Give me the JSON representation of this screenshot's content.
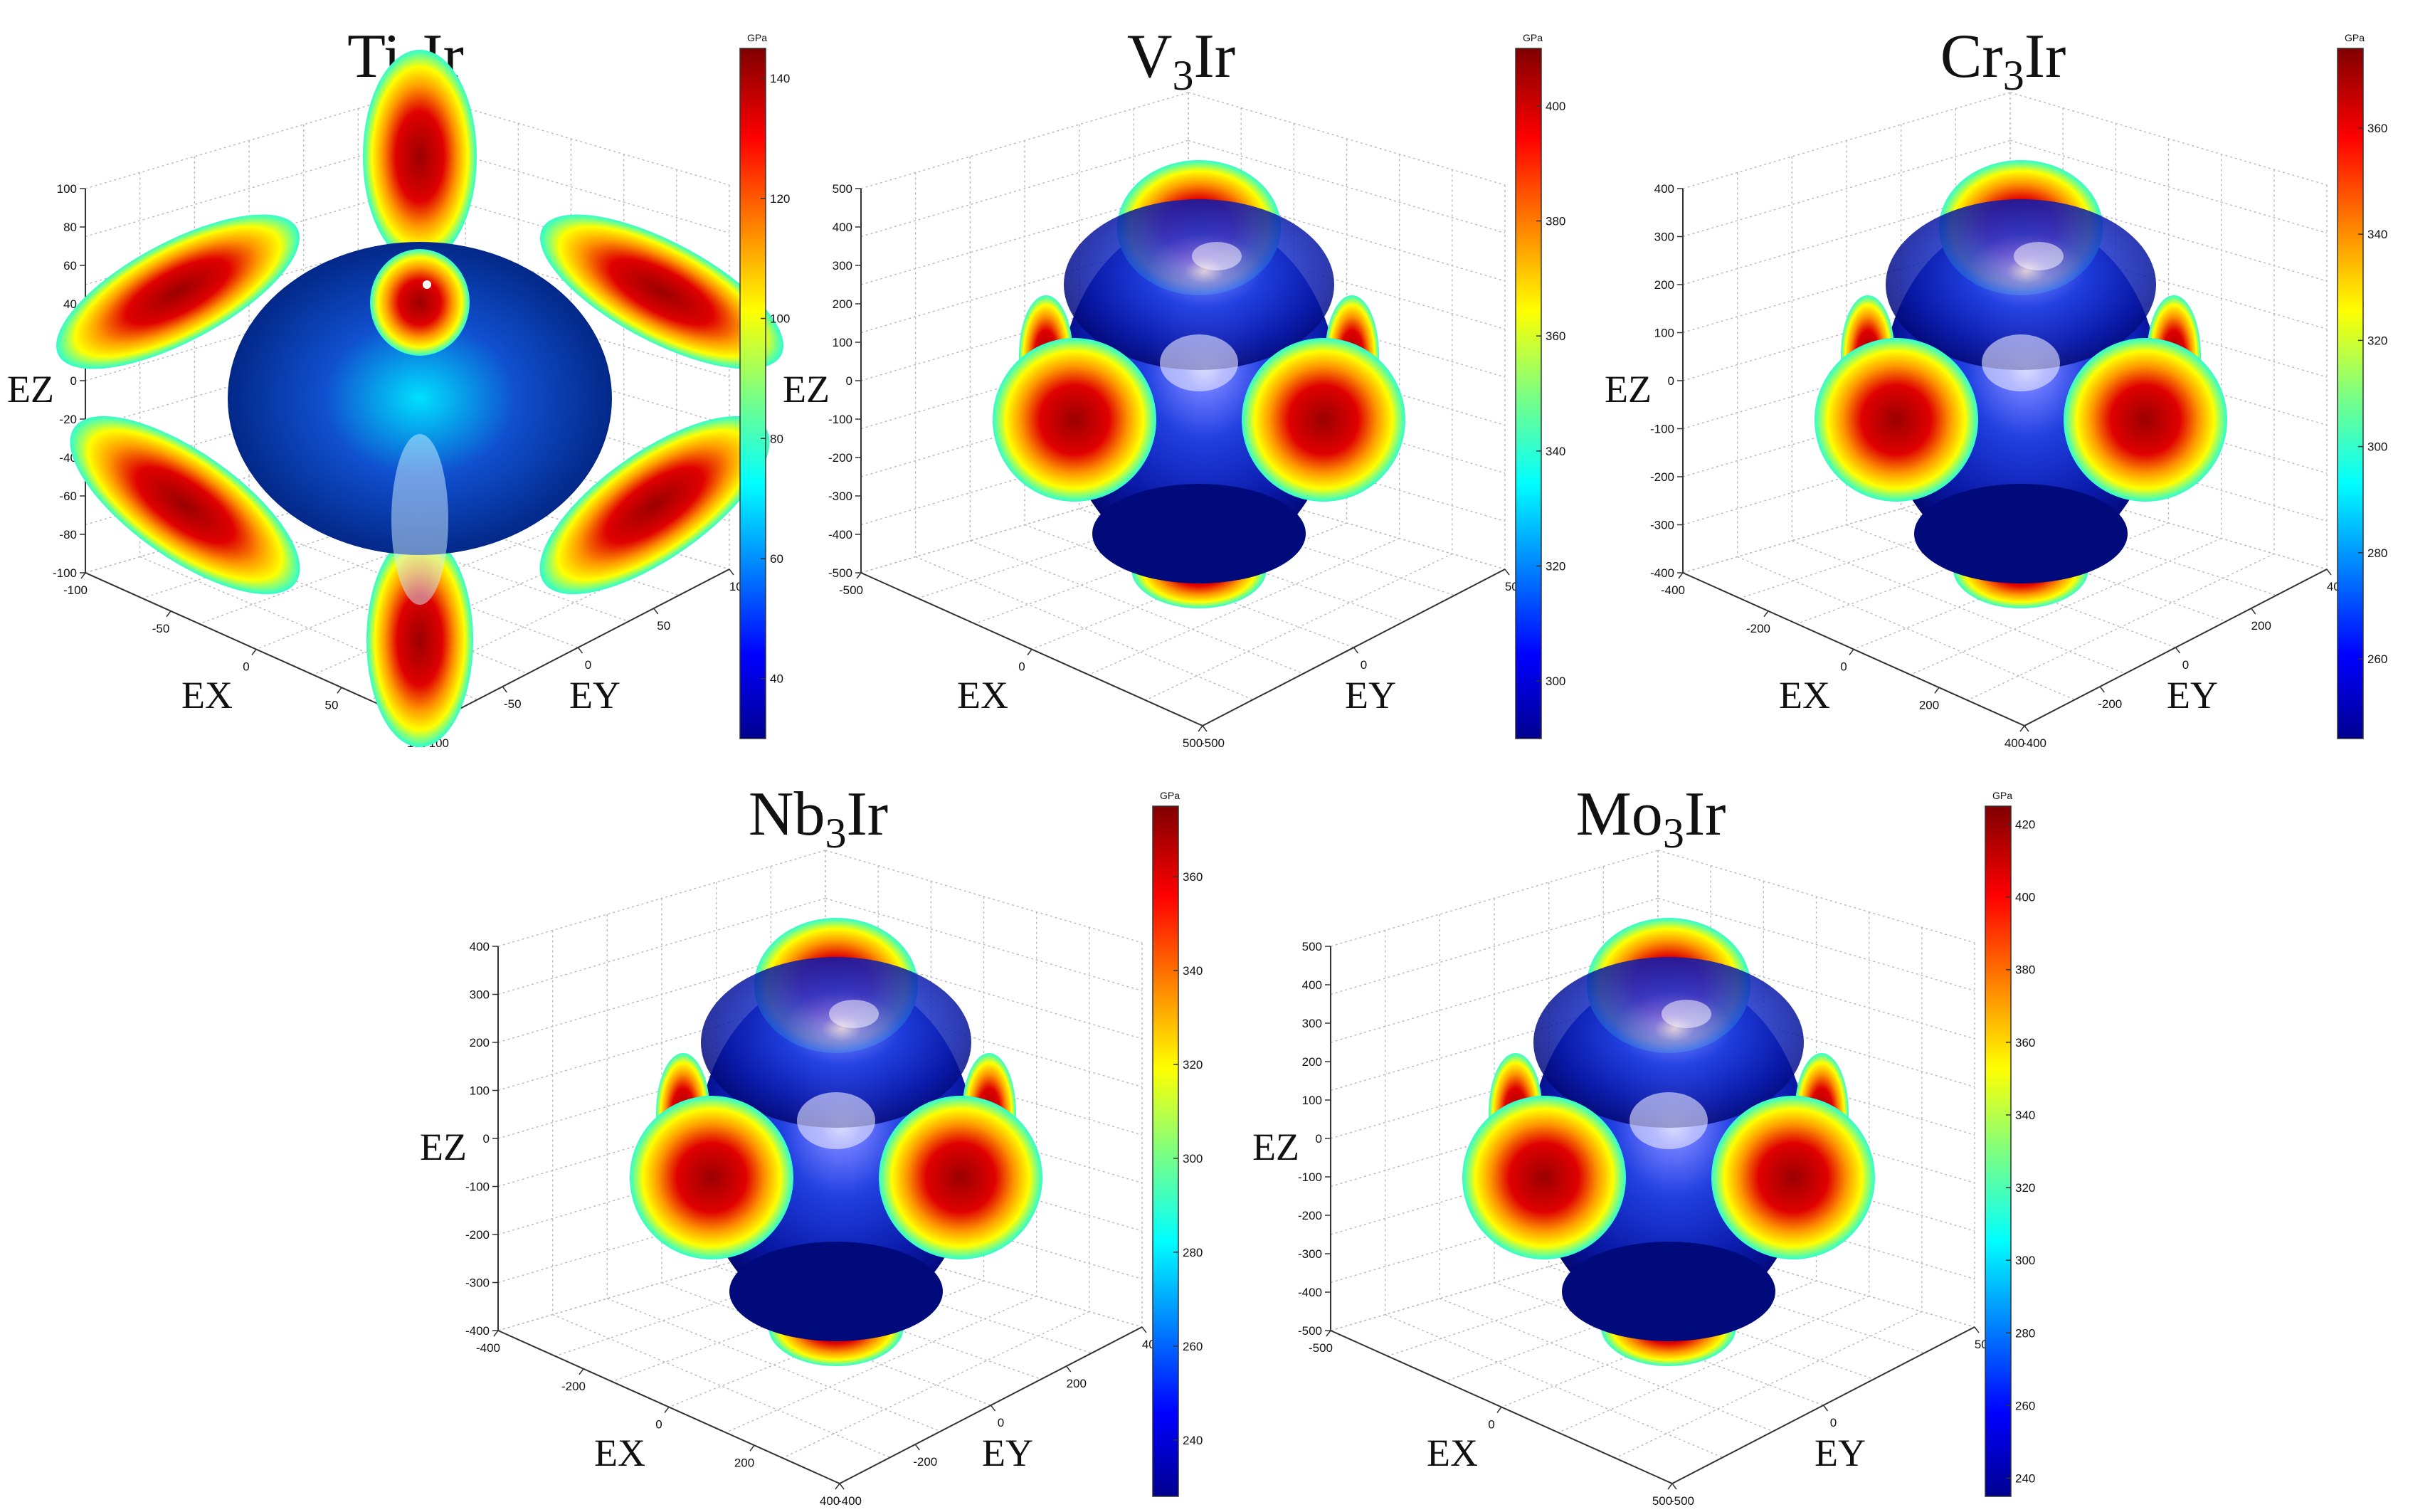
{
  "chart_data": [
    {
      "type": "surface3d",
      "title": "Ti3Ir",
      "title_base": "Ti",
      "title_sub": "3",
      "title_rest": "Ir",
      "xlabel": "EX",
      "ylabel": "EY",
      "zlabel": "EZ",
      "x_ticks": [
        "-100",
        "-50",
        "0",
        "50",
        "100"
      ],
      "y_ticks": [
        "-100",
        "-50",
        "0",
        "50",
        "100"
      ],
      "z_ticks": [
        "100",
        "80",
        "60",
        "40",
        "20",
        "0",
        "-20",
        "-40",
        "-60",
        "-80",
        "-100"
      ],
      "xlim": [
        -100,
        100
      ],
      "ylim": [
        -100,
        100
      ],
      "zlim": [
        -100,
        100
      ],
      "colorbar": {
        "unit": "GPa",
        "ticks": [
          40,
          60,
          80,
          100,
          120,
          140
        ],
        "range": [
          30,
          145
        ]
      },
      "shape": "star"
    },
    {
      "type": "surface3d",
      "title": "V3Ir",
      "title_base": "V",
      "title_sub": "3",
      "title_rest": "Ir",
      "xlabel": "EX",
      "ylabel": "EY",
      "zlabel": "EZ",
      "x_ticks": [
        "-500",
        "0",
        "500"
      ],
      "y_ticks": [
        "-500",
        "0",
        "500"
      ],
      "z_ticks": [
        "500",
        "400",
        "300",
        "200",
        "100",
        "0",
        "-100",
        "-200",
        "-300",
        "-400",
        "-500"
      ],
      "xlim": [
        -500,
        500
      ],
      "ylim": [
        -500,
        500
      ],
      "zlim": [
        -500,
        500
      ],
      "colorbar": {
        "unit": "GPa",
        "ticks": [
          300,
          320,
          340,
          360,
          380,
          400
        ],
        "range": [
          290,
          410
        ]
      },
      "shape": "blob"
    },
    {
      "type": "surface3d",
      "title": "Cr3Ir",
      "title_base": "Cr",
      "title_sub": "3",
      "title_rest": "Ir",
      "xlabel": "EX",
      "ylabel": "EY",
      "zlabel": "EZ",
      "x_ticks": [
        "-400",
        "-200",
        "0",
        "200",
        "400"
      ],
      "y_ticks": [
        "-400",
        "-200",
        "0",
        "200",
        "400"
      ],
      "z_ticks": [
        "400",
        "300",
        "200",
        "100",
        "0",
        "-100",
        "-200",
        "-300",
        "-400"
      ],
      "xlim": [
        -400,
        400
      ],
      "ylim": [
        -400,
        400
      ],
      "zlim": [
        -400,
        400
      ],
      "colorbar": {
        "unit": "GPa",
        "ticks": [
          260,
          280,
          300,
          320,
          340,
          360
        ],
        "range": [
          245,
          375
        ]
      },
      "shape": "blob"
    },
    {
      "type": "surface3d",
      "title": "Nb3Ir",
      "title_base": "Nb",
      "title_sub": "3",
      "title_rest": "Ir",
      "xlabel": "EX",
      "ylabel": "EY",
      "zlabel": "EZ",
      "x_ticks": [
        "-400",
        "-200",
        "0",
        "200",
        "400"
      ],
      "y_ticks": [
        "-400",
        "-200",
        "0",
        "200",
        "400"
      ],
      "z_ticks": [
        "400",
        "300",
        "200",
        "100",
        "0",
        "-100",
        "-200",
        "-300",
        "-400"
      ],
      "xlim": [
        -400,
        400
      ],
      "ylim": [
        -400,
        400
      ],
      "zlim": [
        -400,
        400
      ],
      "colorbar": {
        "unit": "GPa",
        "ticks": [
          240,
          260,
          280,
          300,
          320,
          340,
          360
        ],
        "range": [
          228,
          375
        ]
      },
      "shape": "blob"
    },
    {
      "type": "surface3d",
      "title": "Mo3Ir",
      "title_base": "Mo",
      "title_sub": "3",
      "title_rest": "Ir",
      "xlabel": "EX",
      "ylabel": "EY",
      "zlabel": "EZ",
      "x_ticks": [
        "-500",
        "0",
        "500"
      ],
      "y_ticks": [
        "-500",
        "0",
        "500"
      ],
      "z_ticks": [
        "500",
        "400",
        "300",
        "200",
        "100",
        "0",
        "-100",
        "-200",
        "-300",
        "-400",
        "-500"
      ],
      "xlim": [
        -500,
        500
      ],
      "ylim": [
        -500,
        500
      ],
      "zlim": [
        -500,
        500
      ],
      "colorbar": {
        "unit": "GPa",
        "ticks": [
          240,
          260,
          280,
          300,
          320,
          340,
          360,
          380,
          400,
          420
        ],
        "range": [
          235,
          425
        ]
      },
      "shape": "blob"
    }
  ]
}
